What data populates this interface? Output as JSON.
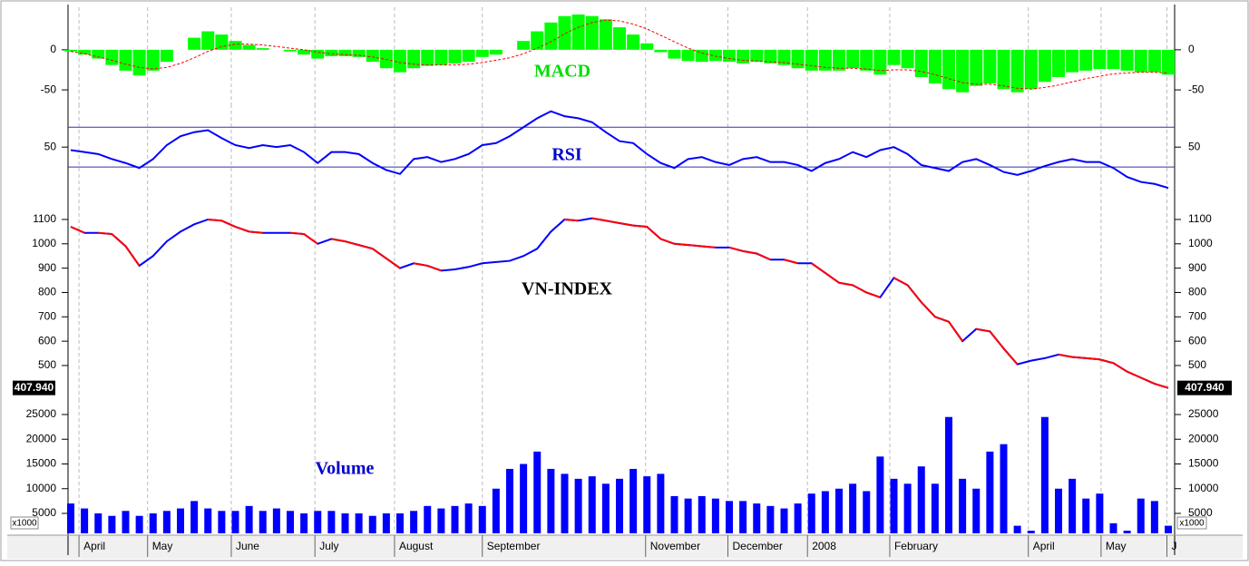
{
  "chart_data": [
    {
      "type": "bar",
      "title": "MACD",
      "color": "#00ff00",
      "signal_color": "#ff0000",
      "ylim": [
        -68,
        53
      ],
      "yticks": [
        0,
        -50
      ],
      "values": [
        -2,
        -6,
        -11,
        -19,
        -26,
        -32,
        -26,
        -15,
        0,
        15,
        23,
        19,
        11,
        6,
        2,
        0,
        -2,
        -6,
        -11,
        -8,
        -8,
        -9,
        -15,
        -23,
        -28,
        -23,
        -20,
        -19,
        -17,
        -15,
        -9,
        -6,
        0,
        11,
        23,
        34,
        42,
        44,
        42,
        38,
        28,
        19,
        8,
        -3,
        -11,
        -14,
        -15,
        -14,
        -15,
        -17,
        -15,
        -17,
        -19,
        -23,
        -26,
        -26,
        -26,
        -23,
        -26,
        -31,
        -19,
        -23,
        -34,
        -42,
        -49,
        -53,
        -45,
        -42,
        -49,
        -53,
        -49,
        -40,
        -34,
        -28,
        -26,
        -24,
        -24,
        -26,
        -28,
        -28,
        -31
      ],
      "signal_values": [
        -2,
        -5,
        -9,
        -13,
        -18,
        -22,
        -24,
        -22,
        -17,
        -10,
        -2,
        4,
        7,
        7,
        6,
        4,
        2,
        0,
        -3,
        -5,
        -6,
        -7,
        -9,
        -12,
        -16,
        -18,
        -19,
        -19,
        -19,
        -18,
        -16,
        -13,
        -10,
        -5,
        2,
        10,
        20,
        28,
        34,
        37,
        36,
        32,
        26,
        18,
        10,
        2,
        -4,
        -8,
        -11,
        -13,
        -14,
        -15,
        -16,
        -18,
        -20,
        -22,
        -23,
        -23,
        -24,
        -26,
        -25,
        -25,
        -27,
        -31,
        -36,
        -41,
        -43,
        -43,
        -45,
        -48,
        -49,
        -47,
        -44,
        -40,
        -36,
        -33,
        -30,
        -29,
        -28,
        -28,
        -29
      ]
    },
    {
      "type": "line",
      "title": "RSI",
      "color": "#0000ff",
      "level_color": "#3333aa",
      "levels": [
        70,
        30
      ],
      "ylim": [
        -10,
        93
      ],
      "yticks": [
        50
      ],
      "values": [
        47,
        45,
        43,
        38,
        34,
        29,
        38,
        52,
        61,
        65,
        67,
        59,
        52,
        49,
        52,
        50,
        52,
        45,
        34,
        45,
        45,
        43,
        34,
        27,
        23,
        38,
        40,
        35,
        38,
        43,
        52,
        54,
        61,
        70,
        79,
        86,
        81,
        79,
        75,
        65,
        56,
        54,
        43,
        34,
        29,
        38,
        40,
        35,
        32,
        38,
        40,
        35,
        35,
        32,
        26,
        34,
        38,
        45,
        40,
        47,
        50,
        43,
        32,
        29,
        26,
        35,
        38,
        32,
        25,
        22,
        26,
        31,
        35,
        38,
        35,
        35,
        29,
        20,
        15,
        13,
        9
      ]
    },
    {
      "type": "line",
      "title": "VN-INDEX",
      "color": "#0000ff",
      "down_color": "#ff0000",
      "last_value_label": "407.940",
      "ylim": [
        362,
        1152
      ],
      "yticks": [
        500,
        600,
        700,
        800,
        900,
        1000,
        1100
      ],
      "values": [
        1070,
        1045,
        1045,
        1040,
        990,
        910,
        950,
        1010,
        1050,
        1080,
        1100,
        1095,
        1070,
        1050,
        1045,
        1045,
        1045,
        1040,
        1000,
        1020,
        1010,
        995,
        980,
        940,
        900,
        920,
        910,
        890,
        895,
        905,
        920,
        925,
        930,
        950,
        980,
        1050,
        1100,
        1095,
        1105,
        1095,
        1085,
        1075,
        1070,
        1020,
        1000,
        995,
        990,
        985,
        985,
        970,
        960,
        935,
        935,
        920,
        920,
        880,
        840,
        830,
        800,
        780,
        860,
        830,
        760,
        700,
        680,
        600,
        650,
        640,
        570,
        505,
        520,
        530,
        545,
        535,
        530,
        525,
        510,
        475,
        450,
        425,
        408
      ]
    },
    {
      "type": "bar",
      "title": "Volume",
      "color": "#0000ff",
      "unit_label": "x1000",
      "ylim": [
        963,
        28119
      ],
      "yticks": [
        5000,
        10000,
        15000,
        20000,
        25000
      ],
      "xlim": [
        0,
        80
      ],
      "xticks": [
        {
          "value": 0.6,
          "label": "April"
        },
        {
          "value": 5.6,
          "label": "May"
        },
        {
          "value": 11.7,
          "label": "June"
        },
        {
          "value": 17.8,
          "label": "July"
        },
        {
          "value": 23.6,
          "label": "August"
        },
        {
          "value": 30,
          "label": "September"
        },
        {
          "value": 41.9,
          "label": "November"
        },
        {
          "value": 47.9,
          "label": "December"
        },
        {
          "value": 53.7,
          "label": "2008"
        },
        {
          "value": 59.7,
          "label": "February"
        },
        {
          "value": 69.8,
          "label": "April"
        },
        {
          "value": 75.1,
          "label": "May"
        },
        {
          "value": 79.9,
          "label": "J"
        }
      ],
      "values": [
        7000,
        6000,
        5000,
        4500,
        5500,
        4500,
        5000,
        5500,
        6000,
        7500,
        6000,
        5500,
        5500,
        6500,
        5500,
        6000,
        5500,
        5000,
        5500,
        5500,
        5000,
        5000,
        4500,
        5000,
        5000,
        5500,
        6500,
        6000,
        6500,
        7000,
        6500,
        10000,
        14000,
        15000,
        17500,
        14000,
        13000,
        12000,
        12500,
        11000,
        12000,
        14000,
        12500,
        13000,
        8500,
        8000,
        8500,
        8000,
        7500,
        7500,
        7000,
        6500,
        6000,
        7000,
        9000,
        9500,
        10000,
        11000,
        9500,
        16500,
        12000,
        11000,
        14500,
        11000,
        24500,
        12000,
        10000,
        17500,
        19000,
        2500,
        1500,
        24500,
        10000,
        12000,
        8000,
        9000,
        3000,
        1500,
        8000,
        7500,
        2500
      ]
    }
  ]
}
